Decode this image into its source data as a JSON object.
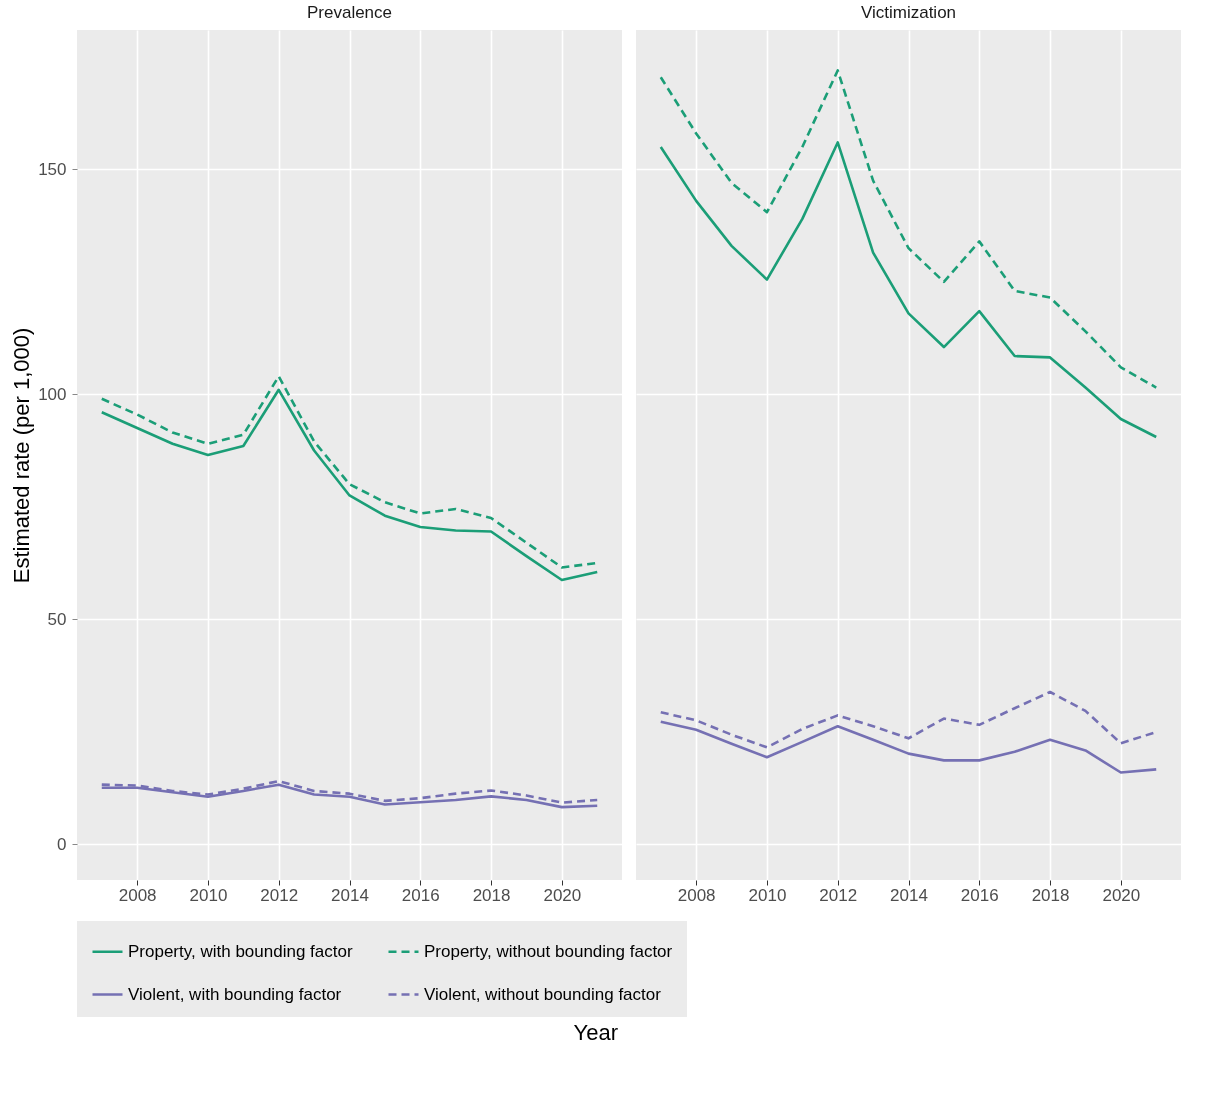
{
  "chart_data": [
    {
      "type": "line",
      "title": "Prevalence",
      "xlabel": "Year",
      "ylabel": "Estimated rate (per 1,000)",
      "x": [
        2007,
        2008,
        2009,
        2010,
        2011,
        2012,
        2013,
        2014,
        2015,
        2016,
        2017,
        2018,
        2019,
        2020,
        2021
      ],
      "xlim": [
        2006.3,
        2021.7
      ],
      "xticks": [
        2008,
        2010,
        2012,
        2014,
        2016,
        2018,
        2020
      ],
      "ylim": [
        -8,
        181
      ],
      "yticks": [
        0,
        50,
        100,
        150
      ],
      "grid": true,
      "legend": "bottom",
      "series": [
        {
          "name": "Property, with bounding factor",
          "color": "#1b9e77",
          "line_style": "solid",
          "values": [
            96,
            92.5,
            89,
            86.5,
            88.5,
            101,
            87.5,
            77.5,
            73,
            70.5,
            69.7,
            69.5,
            64,
            58.7,
            60.5
          ]
        },
        {
          "name": "Property, without bounding factor",
          "color": "#1b9e77",
          "line_style": "dashed",
          "values": [
            99,
            95.5,
            91.5,
            89,
            91,
            104,
            89.5,
            80,
            76,
            73.5,
            74.5,
            72.5,
            67,
            61.5,
            62.5
          ]
        },
        {
          "name": "Violent, with bounding factor",
          "color": "#7570b3",
          "line_style": "solid",
          "values": [
            12.5,
            12.5,
            11.5,
            10.5,
            11.8,
            13.2,
            11,
            10.5,
            8.8,
            9.3,
            9.8,
            10.6,
            9.8,
            8.2,
            8.5
          ]
        },
        {
          "name": "Violent, without bounding factor",
          "color": "#7570b3",
          "line_style": "dashed",
          "values": [
            13.2,
            13,
            11.8,
            11,
            12.3,
            14,
            11.8,
            11.2,
            9.6,
            10.2,
            11.2,
            11.9,
            10.8,
            9.2,
            9.8
          ]
        }
      ]
    },
    {
      "type": "line",
      "title": "Victimization",
      "x": [
        2007,
        2008,
        2009,
        2010,
        2011,
        2012,
        2013,
        2014,
        2015,
        2016,
        2017,
        2018,
        2019,
        2020,
        2021
      ],
      "xlim": [
        2006.3,
        2021.7
      ],
      "xticks": [
        2008,
        2010,
        2012,
        2014,
        2016,
        2018,
        2020
      ],
      "ylim": [
        -8,
        181
      ],
      "yticks": [
        0,
        50,
        100,
        150
      ],
      "grid": true,
      "legend": "bottom",
      "tick_labels": "x",
      "series": [
        {
          "name": "Property, with bounding factor",
          "color": "#1b9e77",
          "line_style": "solid",
          "values": [
            155,
            143,
            133,
            125.5,
            139,
            156,
            131.5,
            118,
            110.5,
            118.5,
            108.5,
            108.2,
            101.5,
            94.5,
            90.5
          ]
        },
        {
          "name": "Property, without bounding factor",
          "color": "#1b9e77",
          "line_style": "dashed",
          "values": [
            170.5,
            158,
            147,
            140.5,
            155,
            172,
            147.5,
            132.5,
            125,
            134,
            123,
            121.5,
            114,
            106,
            101.5
          ]
        },
        {
          "name": "Violent, with bounding factor",
          "color": "#7570b3",
          "line_style": "solid",
          "values": [
            27.2,
            25.4,
            22.3,
            19.3,
            22.7,
            26.2,
            23.2,
            20.1,
            18.6,
            18.6,
            20.5,
            23.2,
            20.8,
            15.9,
            16.6
          ]
        },
        {
          "name": "Violent, without bounding factor",
          "color": "#7570b3",
          "line_style": "dashed",
          "values": [
            29.3,
            27.5,
            24.3,
            21.5,
            25.6,
            28.6,
            26.2,
            23.5,
            27.9,
            26.5,
            30.2,
            33.8,
            29.6,
            22.4,
            24.9
          ]
        }
      ]
    }
  ]
}
